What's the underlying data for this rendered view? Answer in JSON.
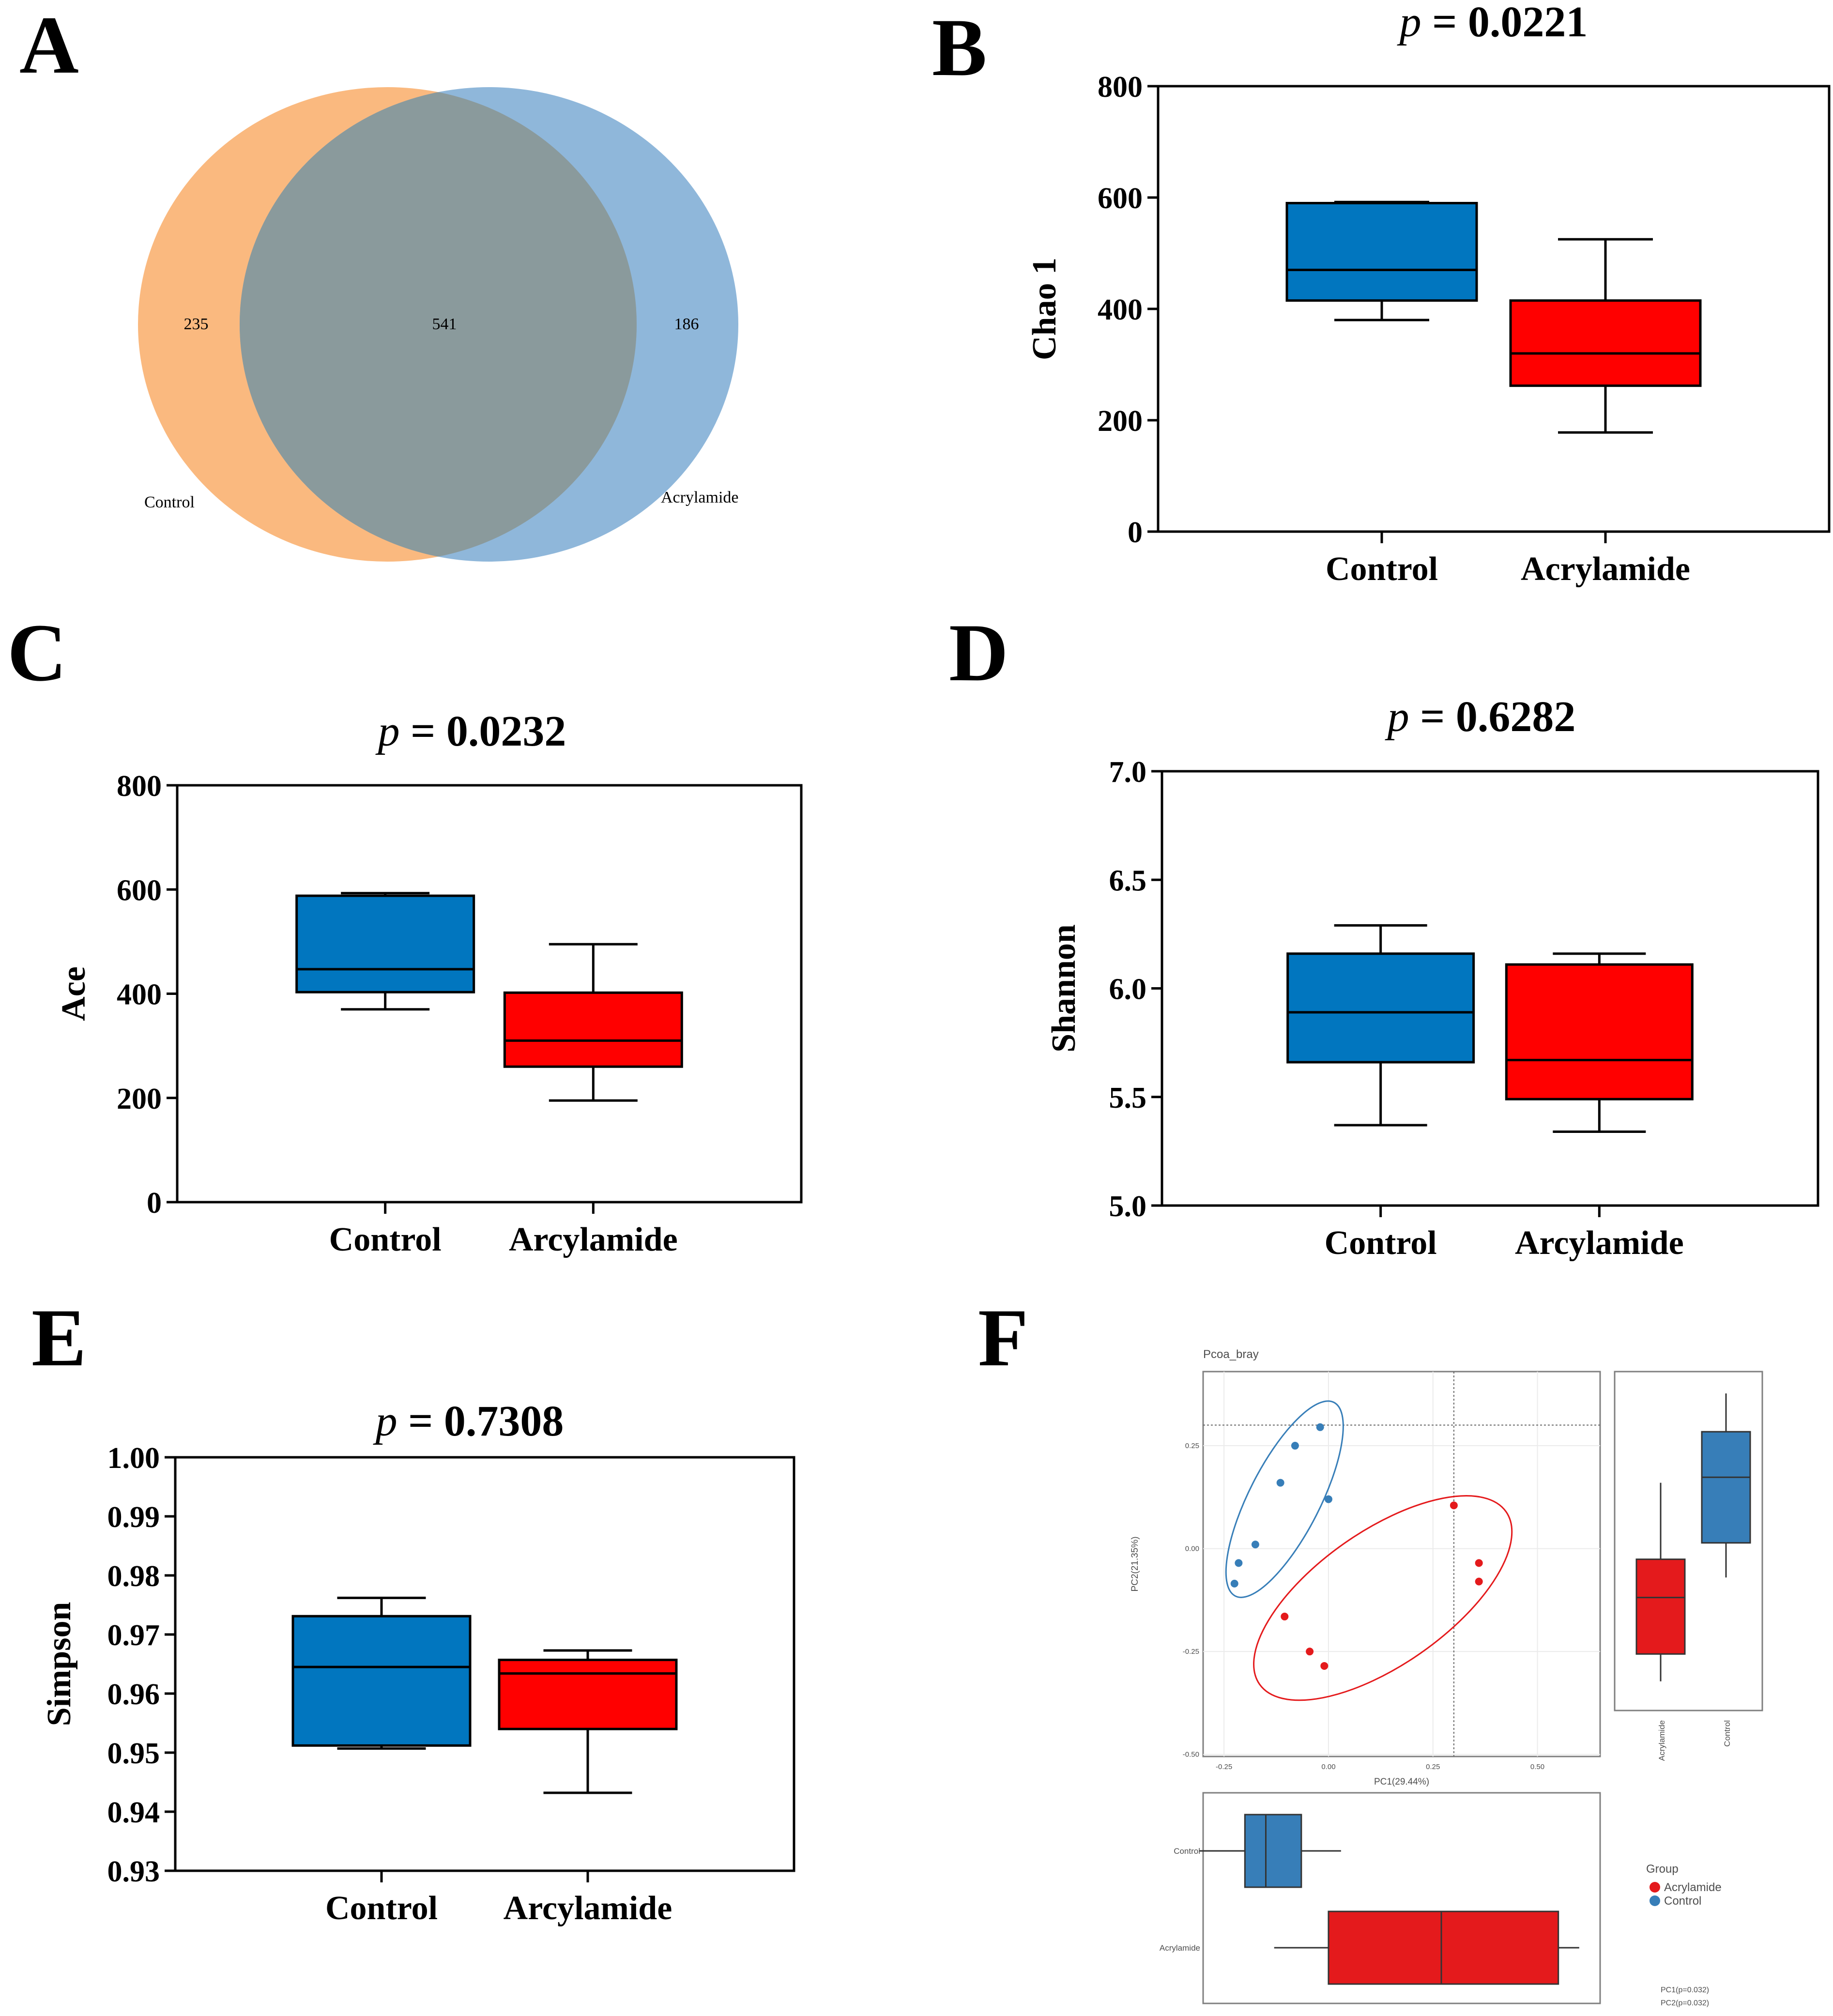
{
  "chart_data": [
    {
      "panel": "A",
      "type": "venn",
      "sets": [
        {
          "name": "Control",
          "only": 235,
          "color": "#F8A55B"
        },
        {
          "name": "Acrylamide",
          "only": 186,
          "color": "#6FA3CF"
        }
      ],
      "shared": 541,
      "overlap_color": "#8A9A9C"
    },
    {
      "panel": "B",
      "type": "box",
      "title_p": "p",
      "title_eq": " = ",
      "title_value": "0.0221",
      "ylabel": "Chao 1",
      "ylim": [
        0,
        800
      ],
      "yticks": [
        "0",
        "200",
        "400",
        "600",
        "800"
      ],
      "ytick_values": [
        0,
        200,
        400,
        600,
        800
      ],
      "groups": [
        {
          "name": "Control",
          "min": 380,
          "q1": 415,
          "median": 470,
          "q3": 590,
          "max": 592,
          "color": "#0176BF"
        },
        {
          "name": "Acrylamide",
          "min": 178,
          "q1": 262,
          "median": 320,
          "q3": 415,
          "max": 525,
          "color": "#FF0000"
        }
      ]
    },
    {
      "panel": "C",
      "type": "box",
      "title_p": "p",
      "title_eq": " = ",
      "title_value": "0.0232",
      "ylabel": "Ace",
      "ylim": [
        0,
        800
      ],
      "yticks": [
        "0",
        "200",
        "400",
        "600",
        "800"
      ],
      "ytick_values": [
        0,
        200,
        400,
        600,
        800
      ],
      "groups": [
        {
          "name": "Control",
          "min": 370,
          "q1": 403,
          "median": 447,
          "q3": 588,
          "max": 593,
          "color": "#0176BF"
        },
        {
          "name": "Arcylamide",
          "min": 195,
          "q1": 260,
          "median": 310,
          "q3": 402,
          "max": 495,
          "color": "#FF0000"
        }
      ]
    },
    {
      "panel": "D",
      "type": "box",
      "title_p": "p",
      "title_eq": " = ",
      "title_value": "0.6282",
      "ylabel": "Shannon",
      "ylim": [
        5.0,
        7.0
      ],
      "yticks": [
        "5.0",
        "5.5",
        "6.0",
        "6.5",
        "7.0"
      ],
      "ytick_values": [
        5.0,
        5.5,
        6.0,
        6.5,
        7.0
      ],
      "groups": [
        {
          "name": "Control",
          "min": 5.37,
          "q1": 5.66,
          "median": 5.89,
          "q3": 6.16,
          "max": 6.29,
          "color": "#0176BF"
        },
        {
          "name": "Arcylamide",
          "min": 5.34,
          "q1": 5.49,
          "median": 5.67,
          "q3": 6.11,
          "max": 6.16,
          "color": "#FF0000"
        }
      ]
    },
    {
      "panel": "E",
      "type": "box",
      "title_p": "p",
      "title_eq": " = ",
      "title_value": "0.7308",
      "ylabel": "Simpson",
      "ylim": [
        0.93,
        1.0
      ],
      "yticks": [
        "0.93",
        "0.94",
        "0.95",
        "0.96",
        "0.97",
        "0.98",
        "0.99",
        "1.00"
      ],
      "ytick_values": [
        0.93,
        0.94,
        0.95,
        0.96,
        0.97,
        0.98,
        0.99,
        1.0
      ],
      "groups": [
        {
          "name": "Control",
          "min": 0.9507,
          "q1": 0.9512,
          "median": 0.9645,
          "q3": 0.9731,
          "max": 0.9762,
          "color": "#0176BF"
        },
        {
          "name": "Arcylamide",
          "min": 0.9432,
          "q1": 0.954,
          "median": 0.9634,
          "q3": 0.9657,
          "max": 0.9673,
          "color": "#FF0000"
        }
      ]
    },
    {
      "panel": "F",
      "type": "scatter",
      "title": "Pcoa_bray",
      "xlabel": "PC1(29.44%)",
      "ylabel": "PC2(21.35%)",
      "xlim": [
        -0.3,
        0.65
      ],
      "ylim": [
        -0.505,
        0.43
      ],
      "xticks": [
        "-0.25",
        "0.00",
        "0.25",
        "0.50"
      ],
      "xtick_values": [
        -0.25,
        0.0,
        0.25,
        0.5
      ],
      "yticks": [
        "-0.50",
        "-0.25",
        "0.00",
        "0.25"
      ],
      "ytick_values": [
        -0.5,
        -0.25,
        0.0,
        0.25
      ],
      "ref_x": 0.3,
      "ref_y": 0.3,
      "legend_title": "Group",
      "series": [
        {
          "name": "Acrylamide",
          "color": "#E41A1C",
          "x": [
            0.3,
            0.36,
            0.36,
            -0.105,
            -0.045,
            -0.01
          ],
          "y": [
            0.105,
            -0.035,
            -0.08,
            -0.165,
            -0.25,
            -0.285
          ]
        },
        {
          "name": "Control",
          "color": "#377EB8",
          "x": [
            -0.02,
            -0.08,
            -0.115,
            -0.175,
            -0.215,
            -0.225,
            0.0
          ],
          "y": [
            0.295,
            0.25,
            0.16,
            0.01,
            -0.035,
            -0.085,
            0.12
          ]
        }
      ],
      "ellipses": [
        {
          "group": "Control",
          "color": "#377EB8",
          "cx": -0.105,
          "cy": 0.12,
          "rx": 0.26,
          "ry": 0.085,
          "angle_deg": 63
        },
        {
          "group": "Acrylamide",
          "color": "#E41A1C",
          "cx": 0.13,
          "cy": -0.12,
          "rx": 0.36,
          "ry": 0.16,
          "angle_deg": 35
        }
      ],
      "side_box_pc2": {
        "categories": [
          "Acrylamide",
          "Control"
        ],
        "groups": [
          {
            "name": "Acrylamide",
            "min": -0.35,
            "q1": -0.275,
            "median": -0.12,
            "q3": -0.015,
            "max": 0.195,
            "color": "#E41A1C"
          },
          {
            "name": "Control",
            "min": -0.065,
            "q1": 0.03,
            "median": 0.21,
            "q3": 0.335,
            "max": 0.44,
            "color": "#377EB8"
          }
        ]
      },
      "bottom_box_pc1": {
        "categories": [
          "Control",
          "Acrylamide"
        ],
        "groups": [
          {
            "name": "Control",
            "min": -0.31,
            "q1": -0.2,
            "median": -0.15,
            "q3": -0.065,
            "max": 0.03,
            "color": "#377EB8"
          },
          {
            "name": "Acrylamide",
            "min": -0.13,
            "q1": 0.0,
            "median": 0.27,
            "q3": 0.55,
            "max": 0.6,
            "color": "#E41A1C"
          }
        ]
      },
      "stats": [
        "PC1(p=0.032)",
        "PC2(p=0.032)"
      ]
    }
  ]
}
